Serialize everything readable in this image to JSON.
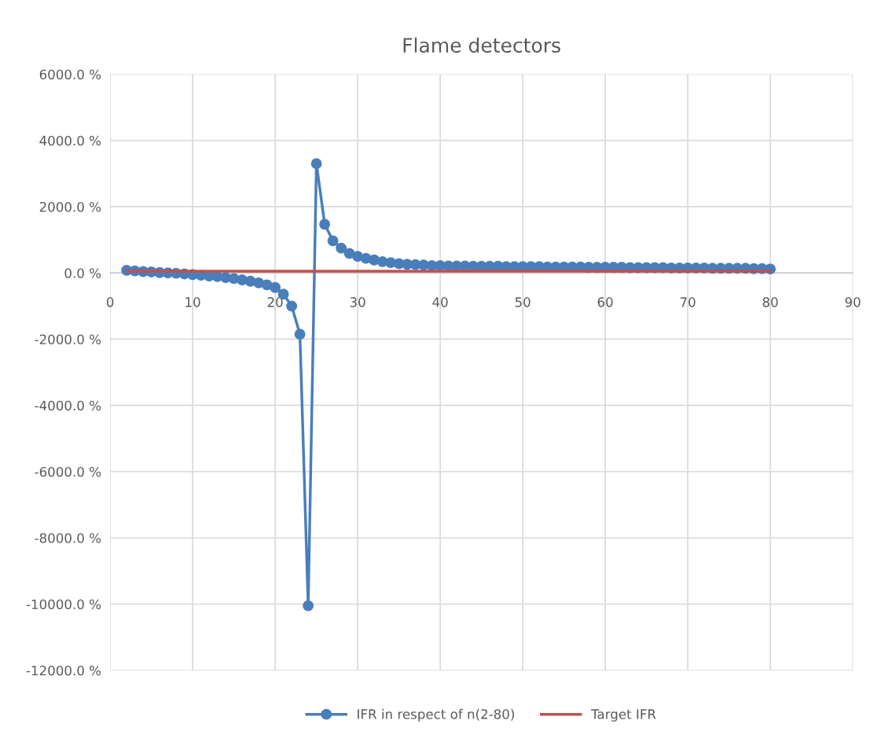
{
  "chart_data": {
    "type": "line",
    "title": "Flame detectors",
    "xlim": [
      0,
      90
    ],
    "xticks": [
      0,
      10,
      20,
      30,
      40,
      50,
      60,
      70,
      80,
      90
    ],
    "ylim": [
      -12000,
      6000
    ],
    "yticks": [
      {
        "value": -12000,
        "label": "-12000.0 %"
      },
      {
        "value": -10000,
        "label": "-10000.0 %"
      },
      {
        "value": -8000,
        "label": "-8000.0 %"
      },
      {
        "value": -6000,
        "label": "-6000.0 %"
      },
      {
        "value": -4000,
        "label": "-4000.0 %"
      },
      {
        "value": -2000,
        "label": "-2000.0 %"
      },
      {
        "value": 0,
        "label": "0.0 %"
      },
      {
        "value": 2000,
        "label": "2000.0 %"
      },
      {
        "value": 4000,
        "label": "4000.0 %"
      },
      {
        "value": 6000,
        "label": "6000.0 %"
      }
    ],
    "grid": true,
    "legend": "bottom",
    "series": [
      {
        "name": "IFR in respect of n(2-80)",
        "color": "#4a7ebb",
        "marker": "circle",
        "line_style": "solid",
        "x": [
          2,
          3,
          4,
          5,
          6,
          7,
          8,
          9,
          10,
          11,
          12,
          13,
          14,
          15,
          16,
          17,
          18,
          19,
          20,
          21,
          22,
          23,
          24,
          25,
          26,
          27,
          28,
          29,
          30,
          31,
          32,
          33,
          34,
          35,
          36,
          37,
          38,
          39,
          40,
          41,
          42,
          43,
          44,
          45,
          46,
          47,
          48,
          49,
          50,
          51,
          52,
          53,
          54,
          55,
          56,
          57,
          58,
          59,
          60,
          61,
          62,
          63,
          64,
          65,
          66,
          67,
          68,
          69,
          70,
          71,
          72,
          73,
          74,
          75,
          76,
          77,
          78,
          79,
          80
        ],
        "values": [
          80,
          60,
          40,
          30,
          10,
          0,
          -10,
          -30,
          -50,
          -70,
          -90,
          -110,
          -140,
          -170,
          -210,
          -250,
          -300,
          -360,
          -440,
          -640,
          -1000,
          -1850,
          -10050,
          3300,
          1470,
          970,
          750,
          590,
          500,
          440,
          390,
          340,
          310,
          280,
          260,
          250,
          240,
          220,
          220,
          210,
          210,
          210,
          200,
          200,
          200,
          200,
          190,
          190,
          190,
          190,
          190,
          180,
          180,
          180,
          180,
          180,
          170,
          170,
          170,
          170,
          170,
          160,
          160,
          160,
          160,
          160,
          150,
          150,
          150,
          150,
          150,
          140,
          140,
          140,
          140,
          140,
          130,
          130,
          120
        ]
      },
      {
        "name": "Target IFR",
        "color": "#c0504d",
        "marker": "none",
        "line_style": "solid",
        "x": [
          2,
          80
        ],
        "values": [
          50,
          50
        ]
      }
    ]
  }
}
